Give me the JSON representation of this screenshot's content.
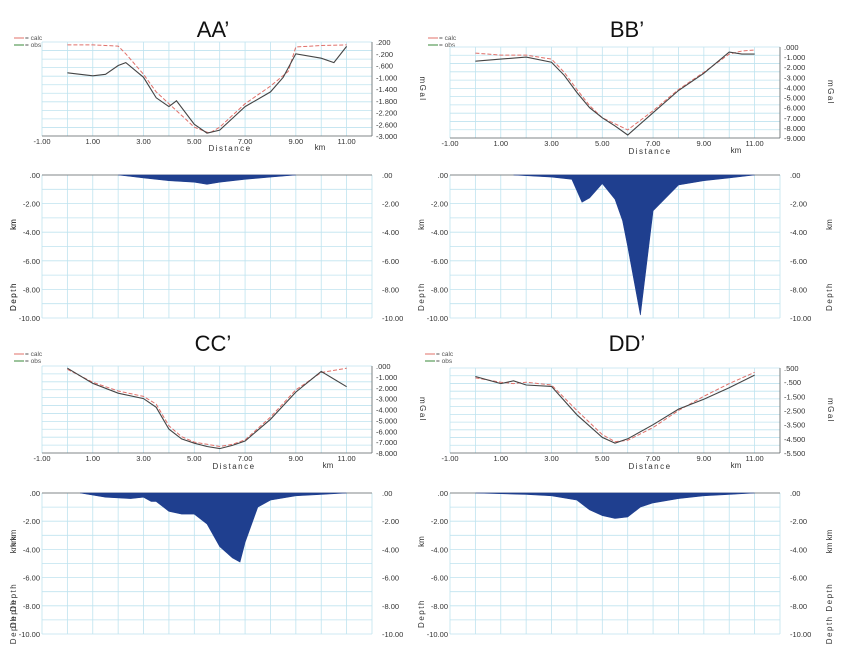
{
  "figure": {
    "grid_color": "#bfe3ef",
    "axis_color": "#666666",
    "fill_color": "#1f3f8f",
    "calc_color": "#e0706a",
    "obs_color": "#3a8a3a",
    "obs_color_alt": "#444444"
  },
  "chart_data": [
    {
      "id": "AA",
      "title": "AA’",
      "legend": [
        "= calc",
        "= obs"
      ],
      "gravity": {
        "type": "line",
        "xlabel": "Distance",
        "xunit": "km",
        "ylabel": "mGal",
        "xlim": [
          -1,
          12
        ],
        "x_ticks": [
          "-1.00",
          "1.00",
          "3.00",
          "5.00",
          "7.00",
          "9.00",
          "11.00"
        ],
        "ylim": [
          -3000,
          200
        ],
        "y_ticks": [
          ".200",
          "-.200",
          "-.600",
          "-1.000",
          "-1.400",
          "-1.800",
          "-2.200",
          "-2.600",
          "-3.000"
        ],
        "series": [
          {
            "name": "calc",
            "x": [
              0,
              1,
              2,
              2.3,
              3,
              3.5,
              4,
              4.5,
              5,
              5.6,
              6,
              6.5,
              7,
              8,
              8.7,
              9,
              10,
              11
            ],
            "y": [
              100,
              100,
              60,
              -200,
              -900,
              -1500,
              -1900,
              -2300,
              -2700,
              -2900,
              -2700,
              -2300,
              -1900,
              -1300,
              -800,
              30,
              80,
              100
            ]
          },
          {
            "name": "obs",
            "x": [
              0,
              1,
              1.5,
              2,
              2.3,
              3,
              3.5,
              4,
              4.3,
              5,
              5.5,
              6,
              6.5,
              7,
              8,
              8.5,
              9,
              10,
              10.5,
              11
            ],
            "y": [
              -850,
              -950,
              -900,
              -600,
              -500,
              -1000,
              -1700,
              -2000,
              -1800,
              -2600,
              -2900,
              -2800,
              -2400,
              -2000,
              -1500,
              -1000,
              -200,
              -350,
              -500,
              50
            ]
          }
        ]
      },
      "depth": {
        "type": "area",
        "ylabel": "Depth",
        "yunit": "km",
        "ylim": [
          -10,
          0
        ],
        "y_ticks": [
          ".00",
          "-2.00",
          "-4.00",
          "-6.00",
          "-8.00",
          "-10.00"
        ],
        "x": [
          2,
          3,
          4,
          5,
          5.5,
          6,
          7,
          8,
          9
        ],
        "depth": [
          0,
          -0.2,
          -0.4,
          -0.5,
          -0.65,
          -0.5,
          -0.3,
          -0.15,
          0
        ]
      }
    },
    {
      "id": "BB",
      "title": "BB’",
      "legend": [
        "= calc",
        "= obs"
      ],
      "gravity": {
        "type": "line",
        "xlabel": "Distance",
        "xunit": "km",
        "ylabel": "mGal",
        "xlim": [
          -1,
          12
        ],
        "x_ticks": [
          "-1.00",
          "1.00",
          "3.00",
          "5.00",
          "7.00",
          "9.00",
          "11.00"
        ],
        "ylim": [
          -9000,
          0
        ],
        "y_ticks": [
          ".000",
          "-1.000",
          "-2.000",
          "-3.000",
          "-4.000",
          "-5.000",
          "-6.000",
          "-7.000",
          "-8.000",
          "-9.000"
        ],
        "series": [
          {
            "name": "calc",
            "x": [
              0,
              1,
              2,
              3,
              3.5,
              4,
              4.5,
              5,
              5.5,
              6,
              7,
              8,
              9,
              10,
              10.5,
              11
            ],
            "y": [
              -600,
              -800,
              -800,
              -1200,
              -2500,
              -4200,
              -5800,
              -7000,
              -7600,
              -8200,
              -6300,
              -4200,
              -2500,
              -700,
              -400,
              -300
            ]
          },
          {
            "name": "obs",
            "x": [
              0,
              1,
              2,
              3,
              3.5,
              4,
              4.5,
              5,
              5.5,
              6,
              7,
              8,
              9,
              10,
              10.5,
              11
            ],
            "y": [
              -1400,
              -1200,
              -1000,
              -1500,
              -2800,
              -4500,
              -6000,
              -7000,
              -7800,
              -8700,
              -6500,
              -4300,
              -2600,
              -500,
              -700,
              -700
            ]
          }
        ]
      },
      "depth": {
        "type": "area",
        "ylabel": "Depth",
        "yunit": "km",
        "ylim": [
          -10,
          0
        ],
        "y_ticks": [
          ".00",
          "-2.00",
          "-4.00",
          "-6.00",
          "-8.00",
          "-10.00"
        ],
        "x": [
          1.5,
          3,
          3.8,
          4.2,
          4.5,
          5,
          5.5,
          5.8,
          6,
          6.5,
          7,
          8,
          9,
          10,
          11
        ],
        "depth": [
          0,
          -0.15,
          -0.3,
          -1.9,
          -1.6,
          -0.6,
          -1.7,
          -3.2,
          -5,
          -9.8,
          -2.5,
          -0.7,
          -0.4,
          -0.2,
          0
        ]
      }
    },
    {
      "id": "CC",
      "title": "CC’",
      "legend": [
        "= calc",
        "= obs"
      ],
      "gravity": {
        "type": "line",
        "xlabel": "Distance",
        "xunit": "km",
        "ylabel": "mGal",
        "xlim": [
          -1,
          12
        ],
        "x_ticks": [
          "-1.00",
          "1.00",
          "3.00",
          "5.00",
          "7.00",
          "9.00",
          "11.00"
        ],
        "ylim": [
          -8000,
          0
        ],
        "y_ticks": [
          ".000",
          "-1.000",
          "-2.000",
          "-3.000",
          "-4.000",
          "-5.000",
          "-6.000",
          "-7.000",
          "-8.000"
        ],
        "series": [
          {
            "name": "calc",
            "x": [
              0,
              1,
              2,
              3,
              3.5,
              4,
              4.5,
              5,
              5.5,
              6,
              6.5,
              7,
              8,
              9,
              10,
              11
            ],
            "y": [
              -300,
              -1500,
              -2300,
              -2800,
              -3500,
              -5500,
              -6500,
              -7000,
              -7200,
              -7400,
              -7200,
              -6800,
              -4700,
              -2200,
              -600,
              -200
            ]
          },
          {
            "name": "obs",
            "x": [
              0,
              1,
              2,
              3,
              3.5,
              4,
              4.5,
              5,
              5.5,
              6,
              6.5,
              7,
              8,
              9,
              10,
              11
            ],
            "y": [
              -200,
              -1600,
              -2500,
              -3000,
              -3800,
              -5800,
              -6700,
              -7100,
              -7400,
              -7600,
              -7300,
              -6900,
              -4900,
              -2400,
              -500,
              -1900
            ]
          }
        ]
      },
      "depth": {
        "type": "area",
        "ylabel": "Depth",
        "yunit": "km",
        "ylim": [
          -10,
          0
        ],
        "y_ticks": [
          ".00",
          "-2.00",
          "-4.00",
          "-6.00",
          "-8.00",
          "-10.00"
        ],
        "x": [
          0.5,
          1.5,
          2.5,
          3,
          3.3,
          3.5,
          4,
          4.5,
          5,
          5.5,
          6,
          6.5,
          6.8,
          7,
          7.5,
          8,
          9,
          10,
          11
        ],
        "depth": [
          0,
          -0.3,
          -0.4,
          -0.3,
          -0.6,
          -0.6,
          -1.3,
          -1.5,
          -1.5,
          -2.2,
          -3.8,
          -4.6,
          -4.9,
          -3.5,
          -1,
          -0.5,
          -0.2,
          -0.1,
          0
        ]
      }
    },
    {
      "id": "DD",
      "title": "DD’",
      "legend": [
        "= calc",
        "= obs"
      ],
      "gravity": {
        "type": "line",
        "xlabel": "Distance",
        "xunit": "km",
        "ylabel": "mGal",
        "xlim": [
          -1,
          12
        ],
        "x_ticks": [
          "-1.00",
          "1.00",
          "3.00",
          "5.00",
          "7.00",
          "9.00",
          "11.00"
        ],
        "ylim": [
          -5500,
          500
        ],
        "y_ticks": [
          ".500",
          "-.500",
          "-1.500",
          "-2.500",
          "-3.500",
          "-4.500",
          "-5.500"
        ],
        "series": [
          {
            "name": "calc",
            "x": [
              0,
              1,
              1.5,
              2,
              3,
              4,
              5,
              5.5,
              6,
              7,
              8,
              9,
              10,
              11
            ],
            "y": [
              -200,
              -500,
              -600,
              -500,
              -700,
              -2500,
              -4200,
              -4700,
              -4600,
              -3700,
              -2500,
              -1500,
              -600,
              200
            ]
          },
          {
            "name": "obs",
            "x": [
              0,
              1,
              1.5,
              2,
              3,
              4,
              5,
              5.5,
              6,
              7,
              8,
              9,
              10,
              11
            ],
            "y": [
              -100,
              -600,
              -400,
              -700,
              -800,
              -2800,
              -4400,
              -4800,
              -4500,
              -3500,
              -2400,
              -1700,
              -900,
              0
            ]
          }
        ]
      },
      "depth": {
        "type": "area",
        "ylabel": "Depth Depth",
        "yunit": "km km",
        "ylim": [
          -10,
          0
        ],
        "y_ticks": [
          ".00",
          "-2.00",
          "-4.00",
          "-6.00",
          "-8.00",
          "-10.00"
        ],
        "x": [
          0,
          2,
          3,
          4,
          4.5,
          5,
          5.5,
          6,
          6.5,
          7,
          8,
          9,
          10,
          11
        ],
        "depth": [
          0,
          -0.1,
          -0.2,
          -0.5,
          -1.2,
          -1.6,
          -1.8,
          -1.7,
          -1.0,
          -0.7,
          -0.4,
          -0.2,
          -0.1,
          0
        ]
      }
    }
  ]
}
